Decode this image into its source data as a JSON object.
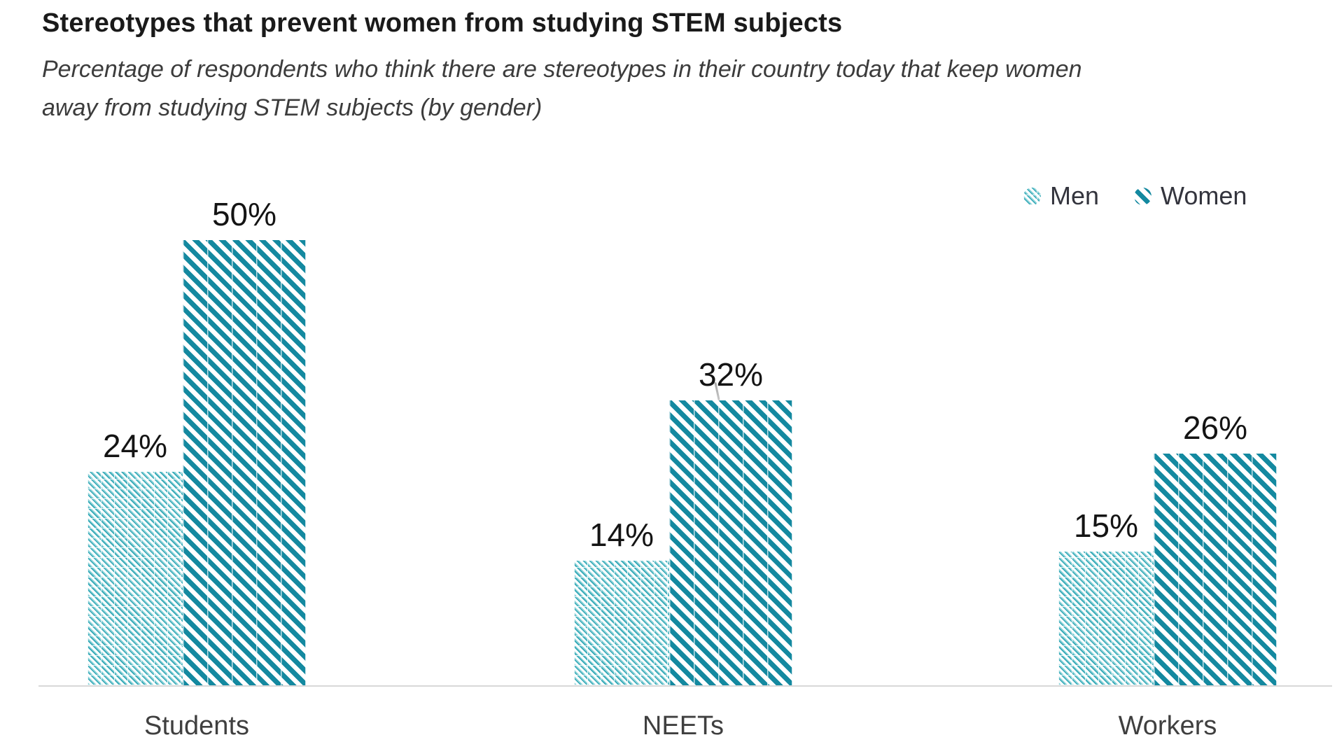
{
  "header": {
    "title": "Stereotypes that prevent women from studying STEM subjects",
    "subtitle": "Percentage of respondents who think there are stereotypes in their country today that keep women away from studying STEM subjects (by gender)"
  },
  "legend": {
    "position": "top-right",
    "items": [
      {
        "label": "Men",
        "swatch_icon": "men-hatch-swatch-icon"
      },
      {
        "label": "Women",
        "swatch_icon": "women-stripe-swatch-icon"
      }
    ]
  },
  "chart_data": {
    "type": "bar",
    "title": "Stereotypes that prevent women from studying STEM subjects",
    "subtitle": "Percentage of respondents who think there are stereotypes in their country today that keep women away from studying STEM subjects (by gender)",
    "categories": [
      "Students",
      "NEETs",
      "Workers"
    ],
    "series": [
      {
        "name": "Men",
        "values": [
          24,
          14,
          15
        ],
        "fill_style": "fine-diagonal-hatch",
        "color": "#8ed3d9"
      },
      {
        "name": "Women",
        "values": [
          50,
          32,
          26
        ],
        "fill_style": "bold-diagonal-stripes",
        "color": "#1489a0"
      }
    ],
    "value_suffix": "%",
    "ylim": [
      0,
      52
    ],
    "y_axis_visible": false,
    "gridlines": false,
    "legend_position": "top-right",
    "xlabel": "",
    "ylabel": ""
  },
  "colors": {
    "men_stripe": "#8ed3d9",
    "men_accent": "#35a9b7",
    "women_stripe": "#1489a0",
    "baseline": "#d8d8d8",
    "title_text": "#1a1a1a",
    "subtitle_text": "#3c3c3c",
    "value_label_text": "#141414",
    "category_text": "#3f3f3f",
    "legend_text": "#33343d"
  }
}
